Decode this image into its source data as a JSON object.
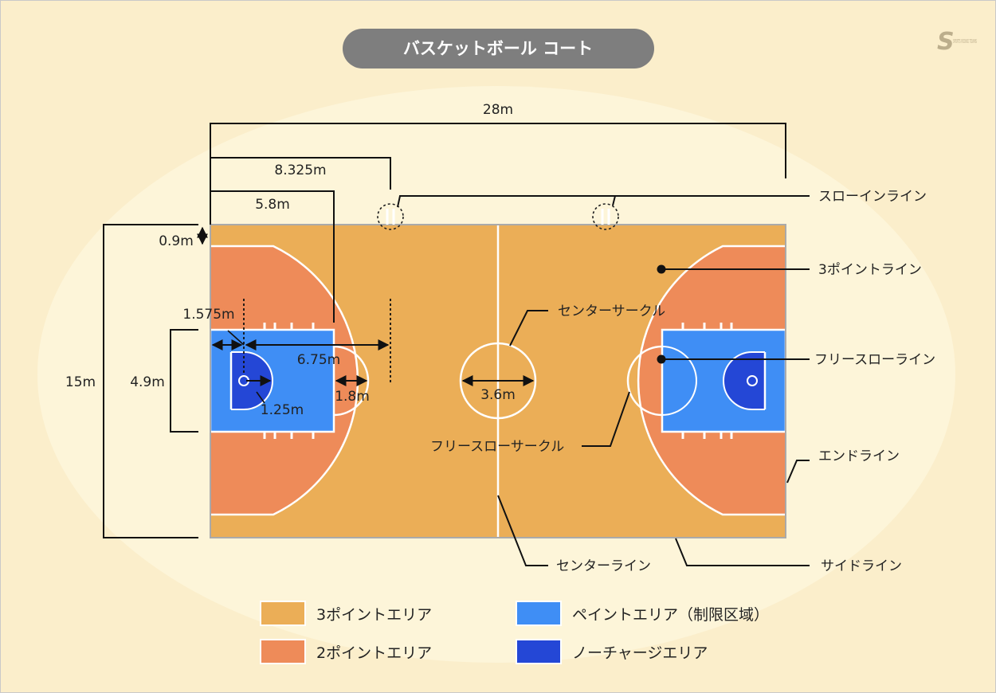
{
  "title": "バスケットボール コート",
  "logo_text": "SPORTS ROOKIE TOWNS",
  "dimensions": {
    "total_length": "28m",
    "three_point_from_end": "8.325m",
    "free_throw_from_end": "5.8m",
    "side_margin": "0.9m",
    "width": "15m",
    "key_width": "4.9m",
    "basket_offset": "1.575m",
    "three_point_radius": "6.75m",
    "free_throw_radius": "1.8m",
    "no_charge_radius": "1.25m",
    "center_circle": "3.6m"
  },
  "callouts": {
    "throw_in_line": "スローインライン",
    "three_point_line": "3ポイントライン",
    "free_throw_line": "フリースローライン",
    "end_line": "エンドライン",
    "side_line": "サイドライン",
    "center_line": "センターライン",
    "center_circle": "センターサークル",
    "free_throw_circle": "フリースローサークル"
  },
  "legend": [
    {
      "label": "3ポイントエリア",
      "color": "#ebae57"
    },
    {
      "label": "2ポイントエリア",
      "color": "#ee8b59"
    },
    {
      "label": "ペイントエリア（制限区域）",
      "color": "#3f8ef5"
    },
    {
      "label": "ノーチャージエリア",
      "color": "#2447d6"
    }
  ],
  "colors": {
    "background": "#fbeecb",
    "ellipse": "#fdf5d9",
    "three_point_area": "#ebae57",
    "two_point_area": "#ee8b59",
    "paint": "#3f8ef5",
    "no_charge": "#2447d6",
    "title_pill": "#7e7e7e"
  }
}
